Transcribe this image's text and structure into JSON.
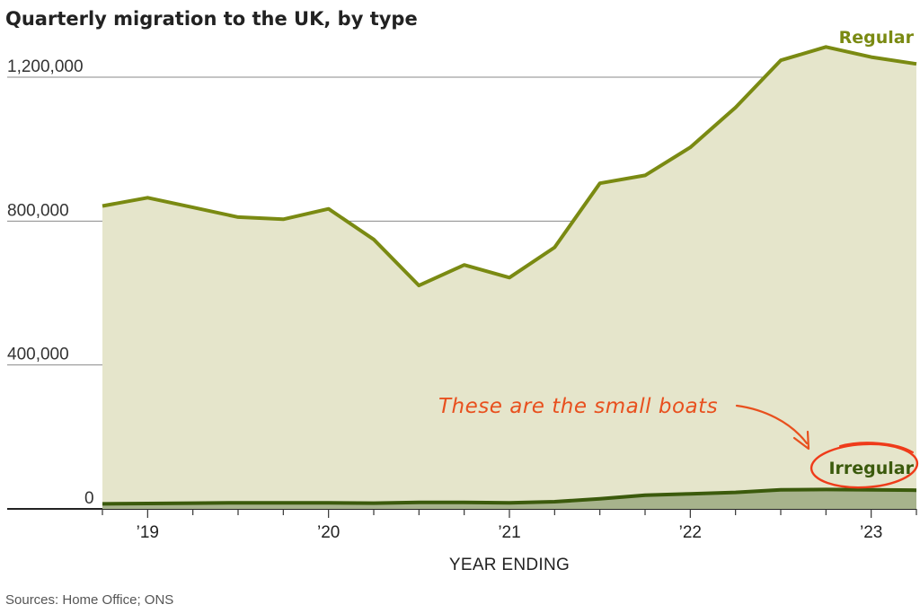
{
  "chart_data": {
    "type": "area",
    "title": "Quarterly migration to the UK, by type",
    "xlabel": "YEAR ENDING",
    "ylabel": "",
    "source": "Sources: Home Office; ONS",
    "annotation": "These are the small boats",
    "ylim": [
      0,
      1300000
    ],
    "yticks": [
      0,
      400000,
      800000,
      1200000
    ],
    "ytick_labels": [
      "0",
      "400,000",
      "800,000",
      "1,200,000"
    ],
    "xticks": [
      2019,
      2020,
      2021,
      2022,
      2023
    ],
    "xtick_labels": [
      "’19",
      "’20",
      "’21",
      "’22",
      "’23"
    ],
    "x": [
      2018.75,
      2019.0,
      2019.25,
      2019.5,
      2019.75,
      2020.0,
      2020.25,
      2020.5,
      2020.75,
      2021.0,
      2021.25,
      2021.5,
      2021.75,
      2022.0,
      2022.25,
      2022.5,
      2022.75,
      2023.0,
      2023.25
    ],
    "series": [
      {
        "name": "Regular",
        "color": "#7a8a12",
        "fill": "#e5e5cb",
        "values": [
          842000,
          865000,
          838000,
          811000,
          805000,
          834000,
          749000,
          621000,
          678000,
          643000,
          727000,
          905000,
          927000,
          1005000,
          1116000,
          1247000,
          1284000,
          1256000,
          1237000
        ]
      },
      {
        "name": "Irregular",
        "color": "#3b5a0c",
        "fill": "#a7b38c",
        "values": [
          14000,
          15000,
          16000,
          17000,
          17000,
          17000,
          16000,
          18000,
          18000,
          17000,
          20000,
          28000,
          38000,
          42000,
          46000,
          53000,
          54000,
          53000,
          52000
        ]
      }
    ]
  }
}
